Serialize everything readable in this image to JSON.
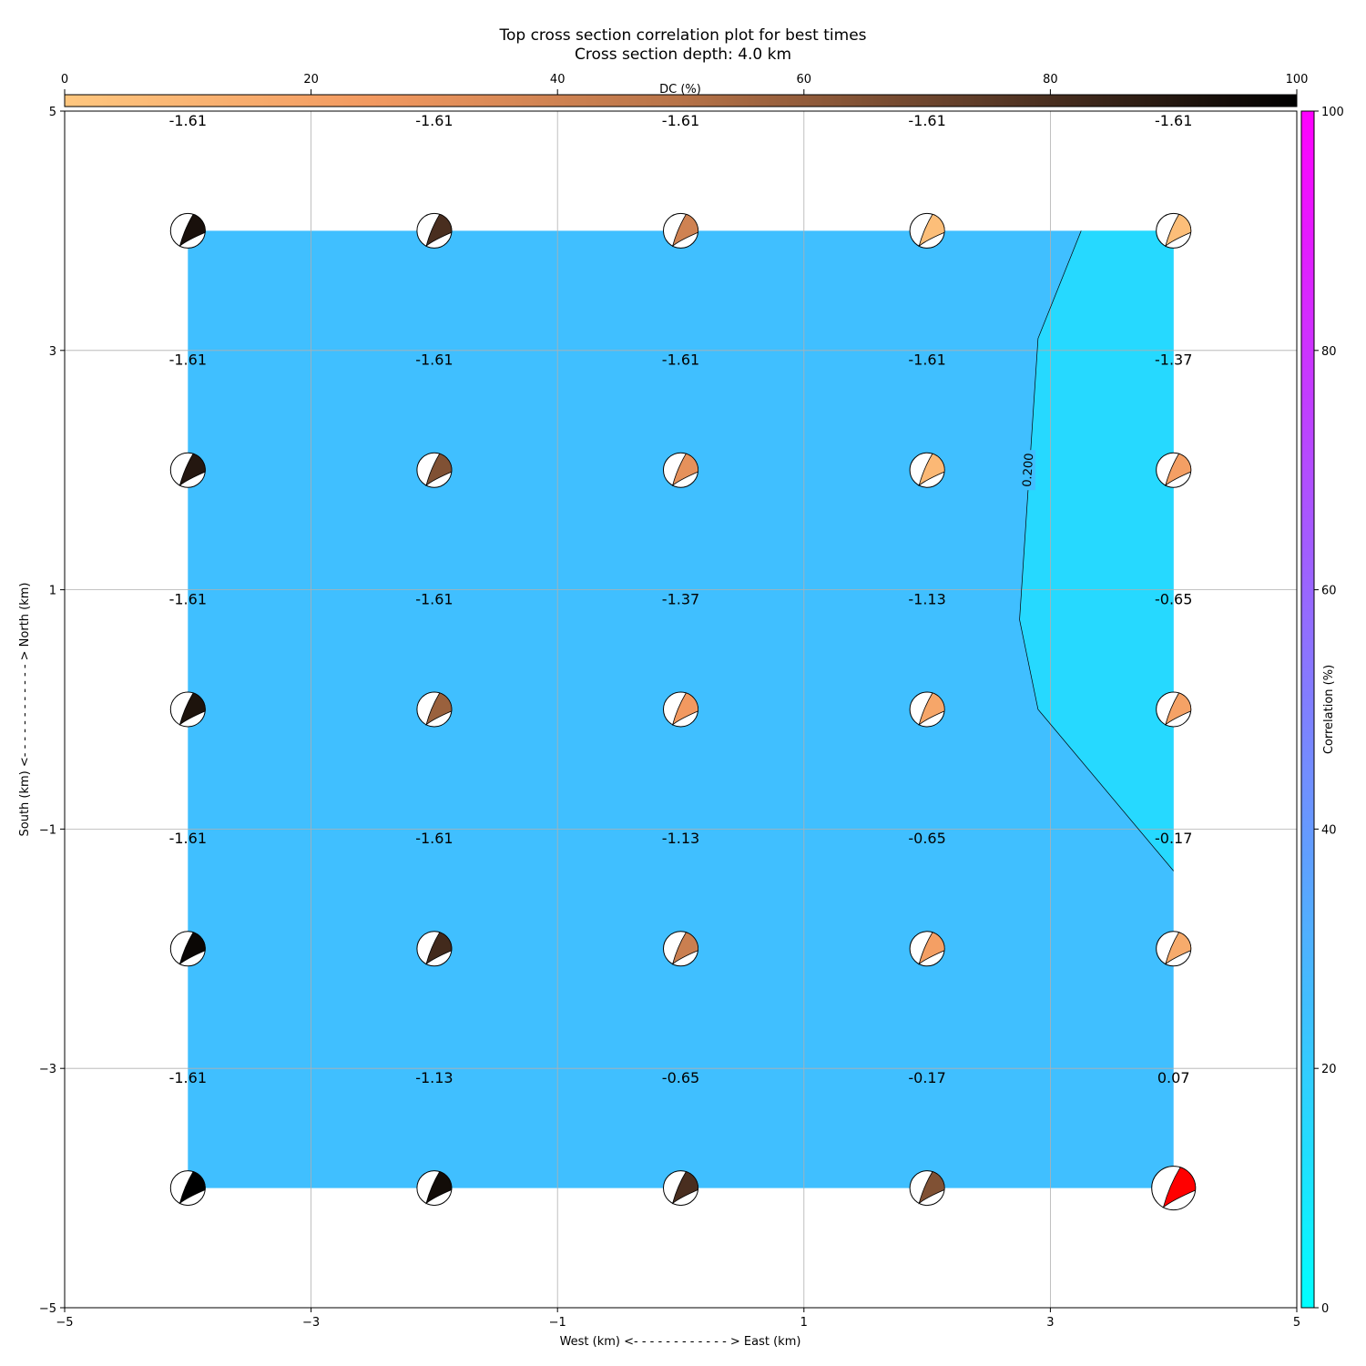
{
  "chart_data": {
    "type": "heatmap",
    "title": "Top cross section correlation plot for best times",
    "subtitle": "Cross section depth: 4.0 km",
    "xlabel": "West (km) <- - - - - - - - - - - - > East (km)",
    "ylabel": "South (km) <- - - - - - - - - - - - > North (km)",
    "xlim": [
      -5,
      5
    ],
    "ylim": [
      -5,
      5
    ],
    "xticks": [
      "−5",
      "−3",
      "−1",
      "1",
      "3",
      "5"
    ],
    "yticks": [
      "−5",
      "−3",
      "−1",
      "1",
      "3",
      "5"
    ],
    "grid": true,
    "dc_colorbar": {
      "label": "DC (%)",
      "range": [
        0,
        100
      ],
      "ticks": [
        "0",
        "20",
        "40",
        "60",
        "80",
        "100"
      ],
      "colors": [
        "#ffc77f",
        "#f29960",
        "#b77348",
        "#5b3a27",
        "#000000"
      ]
    },
    "correlation_colorbar": {
      "label": "Correlation (%)",
      "range": [
        0,
        100
      ],
      "ticks": [
        "0",
        "20",
        "40",
        "60",
        "80",
        "100"
      ],
      "colors": [
        "#00ffff",
        "#ff00ff"
      ]
    },
    "fill_colors": {
      "low": "#40bfff",
      "high": "#26d9ff"
    },
    "contour": {
      "level_label": "0.200",
      "path": [
        [
          3.25,
          4.0
        ],
        [
          2.9,
          3.1
        ],
        [
          2.75,
          0.75
        ],
        [
          2.9,
          0.0
        ],
        [
          4.0,
          -1.35
        ]
      ]
    },
    "x": [
      -4,
      -2,
      0,
      2,
      4
    ],
    "y": [
      4,
      2,
      0,
      -2,
      -4
    ],
    "cells": [
      [
        {
          "v": "-1.61",
          "dc": 93
        },
        {
          "v": "-1.61",
          "dc": 80
        },
        {
          "v": "-1.61",
          "dc": 40
        },
        {
          "v": "-1.61",
          "dc": 5
        },
        {
          "v": "-1.61",
          "dc": 5
        }
      ],
      [
        {
          "v": "-1.61",
          "dc": 90
        },
        {
          "v": "-1.61",
          "dc": 65
        },
        {
          "v": "-1.61",
          "dc": 30
        },
        {
          "v": "-1.61",
          "dc": 8
        },
        {
          "v": "-1.37",
          "dc": 22
        }
      ],
      [
        {
          "v": "-1.61",
          "dc": 92
        },
        {
          "v": "-1.61",
          "dc": 58
        },
        {
          "v": "-1.37",
          "dc": 25
        },
        {
          "v": "-1.13",
          "dc": 18
        },
        {
          "v": "-0.65",
          "dc": 20
        }
      ],
      [
        {
          "v": "-1.61",
          "dc": 97
        },
        {
          "v": "-1.61",
          "dc": 82
        },
        {
          "v": "-1.13",
          "dc": 42
        },
        {
          "v": "-0.65",
          "dc": 22
        },
        {
          "v": "-0.17",
          "dc": 15
        }
      ],
      [
        {
          "v": "-1.61",
          "dc": 100
        },
        {
          "v": "-1.13",
          "dc": 95
        },
        {
          "v": "-0.65",
          "dc": 80
        },
        {
          "v": "-0.17",
          "dc": 65
        },
        {
          "v": "0.07",
          "dc": null,
          "best": true
        }
      ]
    ],
    "best_color": "#ff0000"
  }
}
